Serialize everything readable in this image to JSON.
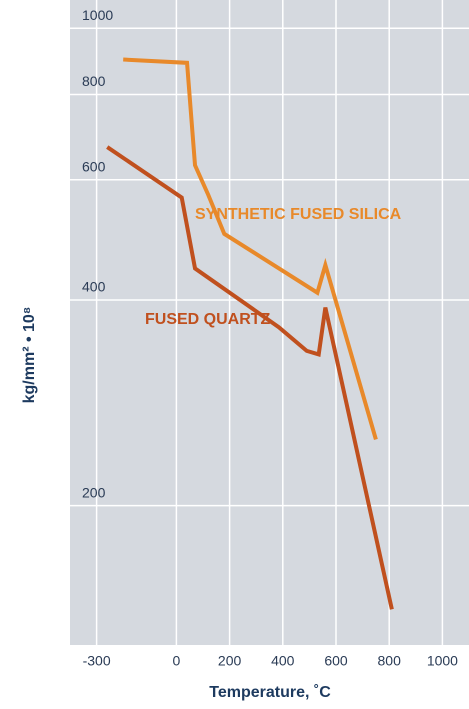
{
  "chart_data": {
    "type": "line",
    "xlabel": "Temperature, ˚C",
    "ylabel": "kg/mm² • 10⁸",
    "xlim": [
      -400,
      1100
    ],
    "xticks": [
      -300,
      0,
      200,
      400,
      600,
      800,
      1000
    ],
    "ylim": [
      125,
      1100
    ],
    "yticks": [
      200,
      400,
      600,
      800,
      1000
    ],
    "ylog": true,
    "grid": true,
    "series": [
      {
        "name": "SYNTHETIC FUSED SILICA",
        "color": "#e8892a",
        "x": [
          -200,
          40,
          70,
          120,
          180,
          530,
          560,
          750
        ],
        "values": [
          900,
          890,
          630,
          570,
          500,
          410,
          450,
          250
        ]
      },
      {
        "name": "FUSED QUARTZ",
        "color": "#c0501e",
        "x": [
          -260,
          20,
          70,
          385,
          490,
          535,
          560,
          810
        ],
        "values": [
          670,
          565,
          445,
          365,
          337,
          333,
          390,
          141
        ]
      }
    ]
  }
}
